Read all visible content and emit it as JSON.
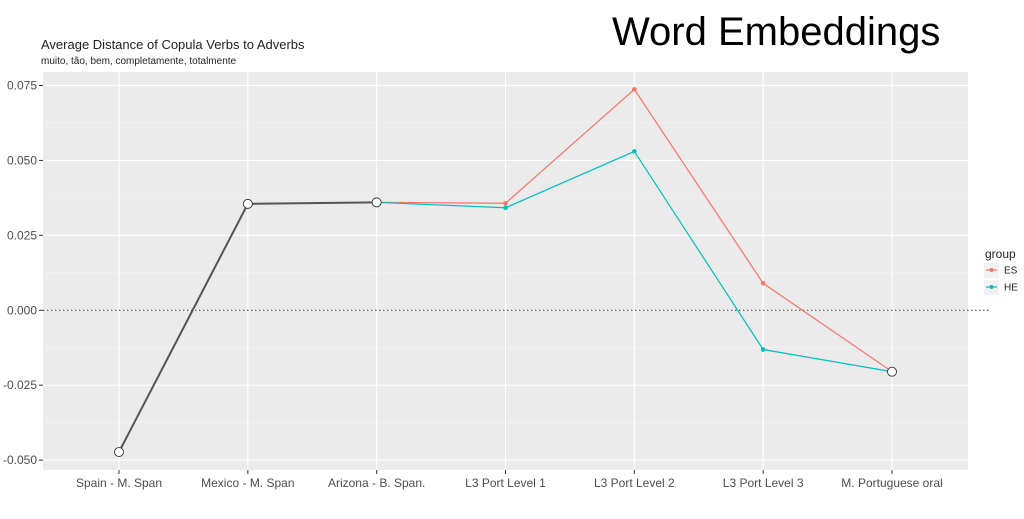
{
  "slide": {
    "title": "Word Embeddings"
  },
  "chart_data": {
    "type": "line",
    "title": "Average Distance of Copula Verbs to Adverbs",
    "subtitle": "muito, tão, bem, completamente, totalmente",
    "xlabel": "",
    "ylabel": "",
    "categories": [
      "Spain - M. Span",
      "Mexico - M. Span",
      "Arizona - B. Span.",
      "L3 Port Level 1",
      "L3 Port Level 2",
      "L3 Port Level 3",
      "M. Portuguese oral"
    ],
    "ylim": [
      -0.0533,
      0.0795
    ],
    "yticks": [
      0.075,
      0.05,
      0.025,
      0.0,
      -0.025,
      -0.05
    ],
    "ytick_labels": [
      "0.075",
      "0.050",
      "0.025",
      "0.000",
      "-0.025",
      "-0.050"
    ],
    "series": [
      {
        "name": "ES",
        "color": "#F8766D",
        "values": [
          null,
          0.0355,
          0.036,
          0.0357,
          0.0737,
          0.009,
          -0.0205
        ]
      },
      {
        "name": "HE",
        "color": "#00BFC4",
        "values": [
          null,
          0.0355,
          0.036,
          0.0342,
          0.053,
          -0.0131,
          -0.0205
        ]
      }
    ],
    "shared_series": {
      "color": "#555555",
      "values": [
        -0.0473,
        0.0355,
        0.036
      ]
    },
    "open_points": [
      {
        "category": "Spain - M. Span",
        "value": -0.0473
      },
      {
        "category": "Mexico - M. Span",
        "value": 0.0355
      },
      {
        "category": "Arizona - B. Span.",
        "value": 0.036
      },
      {
        "category": "M. Portuguese oral",
        "value": -0.0205
      }
    ],
    "reference_line": {
      "y": 0.0,
      "style": "dotted"
    },
    "legend": {
      "title": "group",
      "position": "right"
    },
    "grid": true,
    "panel_background": "#EBEBEB"
  }
}
